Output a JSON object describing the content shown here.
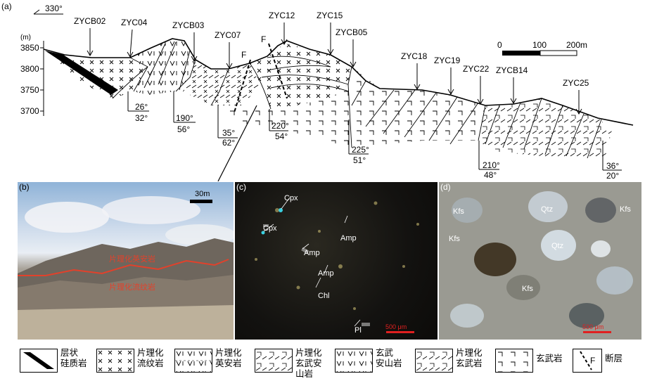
{
  "panel_a": {
    "label": "(a)",
    "direction": "330°",
    "unit": "(m)",
    "elevations": [
      "3850",
      "3800",
      "3750",
      "3700"
    ],
    "scale": {
      "zero": "0",
      "mid": "100",
      "end": "200m"
    },
    "boreholes": [
      "ZYCB02",
      "ZYC04",
      "ZYCB03",
      "ZYC07",
      "ZYC12",
      "ZYC15",
      "ZYCB05",
      "ZYC18",
      "ZYC19",
      "ZYC22",
      "ZYCB14",
      "ZYC25"
    ],
    "fault": "F",
    "attitudes": [
      {
        "dir": "26°",
        "dip": "32°"
      },
      {
        "dir": "190°",
        "dip": "56°"
      },
      {
        "dir": "35°",
        "dip": "62°"
      },
      {
        "dir": "220°",
        "dip": "54°"
      },
      {
        "dir": "225°",
        "dip": "51°"
      },
      {
        "dir": "210°",
        "dip": "48°"
      },
      {
        "dir": "36°",
        "dip": "20°"
      }
    ]
  },
  "panel_b": {
    "label": "(b)",
    "scale": "30m",
    "upper_label": "片理化英安岩",
    "lower_label": "片理化流纹岩"
  },
  "panel_c": {
    "label": "(c)",
    "minerals": [
      "Cpx",
      "Cpx",
      "Amp",
      "Amp",
      "Amp",
      "Chl",
      "Pl"
    ],
    "scale": "500 μm"
  },
  "panel_d": {
    "label": "(d)",
    "minerals": [
      "Kfs",
      "Qtz",
      "Kfs",
      "Kfs",
      "Qtz",
      "Kfs"
    ],
    "scale": "500 μm"
  },
  "legend": [
    {
      "icon": "siliceous-rock-icon",
      "lines": [
        "层状",
        "硅质岩"
      ]
    },
    {
      "icon": "schistose-rhyolite-icon",
      "lines": [
        "片理化",
        "流纹岩"
      ]
    },
    {
      "icon": "schistose-dacite-icon",
      "lines": [
        "片理化",
        "英安岩"
      ]
    },
    {
      "icon": "schistose-basaltic-andesite-icon",
      "lines": [
        "片理化",
        "玄武安",
        "山岩"
      ]
    },
    {
      "icon": "basaltic-andesite-icon",
      "lines": [
        "玄武",
        "安山岩"
      ]
    },
    {
      "icon": "schistose-basalt-icon",
      "lines": [
        "片理化",
        "玄武岩"
      ]
    },
    {
      "icon": "basalt-icon",
      "lines": [
        "玄武岩"
      ]
    },
    {
      "icon": "fault-icon",
      "lines": [
        "断层"
      ]
    }
  ]
}
